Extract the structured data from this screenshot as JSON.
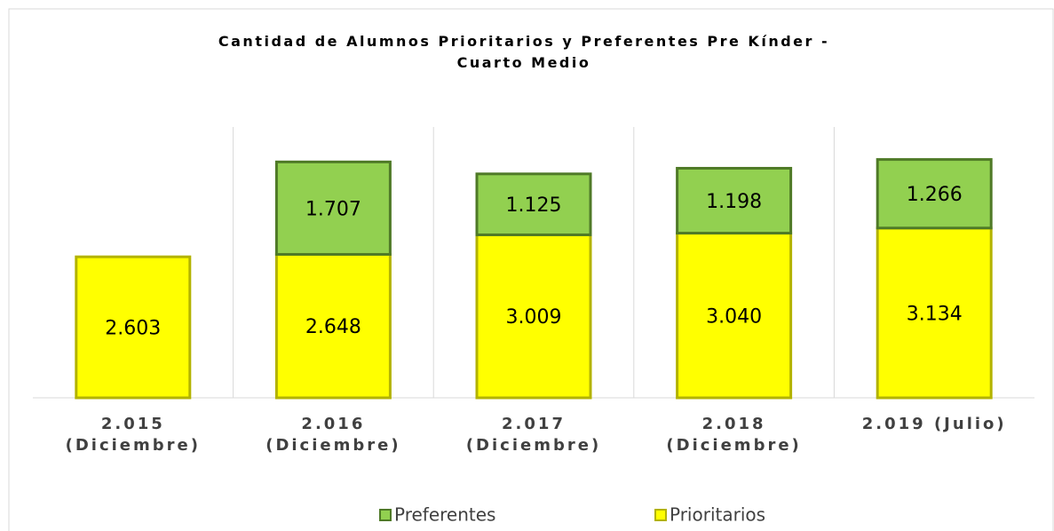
{
  "chart_data": {
    "type": "stacked_bar",
    "title": "Cantidad de Alumnos Prioritarios y Preferentes Pre Kínder -\nCuarto Medio",
    "categories": [
      "2.015\n(Diciembre)",
      "2.016\n(Diciembre)",
      "2.017\n(Diciembre)",
      "2.018\n(Diciembre)",
      "2.019 (Julio)"
    ],
    "series": [
      {
        "name": "Prioritarios",
        "color": "#ffff00",
        "values": [
          2603,
          2648,
          3009,
          3040,
          3134
        ],
        "value_labels": [
          "2.603",
          "2.648",
          "3.009",
          "3.040",
          "3.134"
        ]
      },
      {
        "name": "Preferentes",
        "color": "#92d050",
        "values": [
          null,
          1707,
          1125,
          1198,
          1266
        ],
        "value_labels": [
          null,
          "1.707",
          "1.125",
          "1.198",
          "1.266"
        ]
      }
    ],
    "ylim": [
      0,
      5000
    ],
    "legend": "bottom"
  }
}
